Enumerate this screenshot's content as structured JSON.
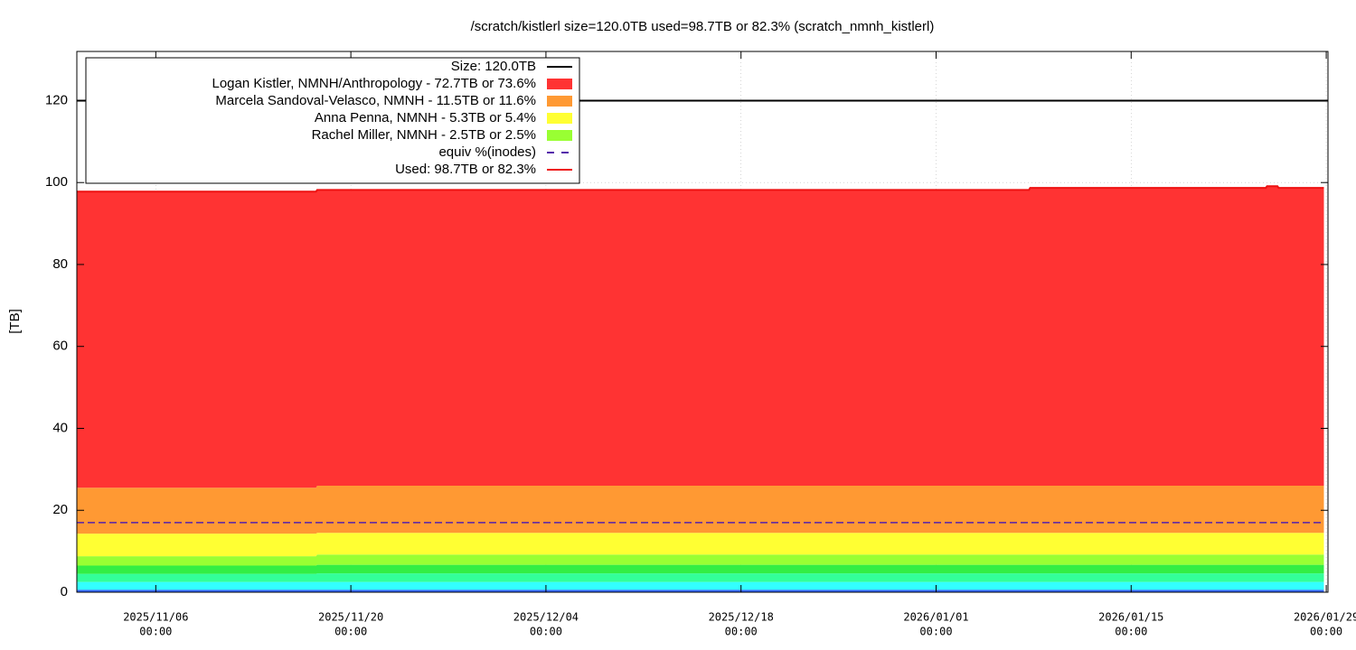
{
  "chart_data": {
    "type": "area",
    "stacked": true,
    "title": "/scratch/kistlerl size=120.0TB used=98.7TB or 82.3% (scratch_nmnh_kistlerl)",
    "ylabel": "[TB]",
    "x": [
      "2025/10/31 08:00",
      "2025/11/17 12:00",
      "2025/11/17 14:00",
      "2026/01/07 16:00",
      "2026/01/07 18:00",
      "2026/01/24 16:00",
      "2026/01/24 18:00",
      "2026/01/25 12:00",
      "2026/01/25 14:00",
      "2026/01/28 20:00"
    ],
    "xlim": [
      "2025/10/31 08:00",
      "2026/01/29 03:00"
    ],
    "xticks": [
      {
        "value": "2025/11/06 00:00",
        "label": [
          "2025/11/06",
          "00:00"
        ]
      },
      {
        "value": "2025/11/20 00:00",
        "label": [
          "2025/11/20",
          "00:00"
        ]
      },
      {
        "value": "2025/12/04 00:00",
        "label": [
          "2025/12/04",
          "00:00"
        ]
      },
      {
        "value": "2025/12/18 00:00",
        "label": [
          "2025/12/18",
          "00:00"
        ]
      },
      {
        "value": "2026/01/01 00:00",
        "label": [
          "2026/01/01",
          "00:00"
        ]
      },
      {
        "value": "2026/01/15 00:00",
        "label": [
          "2026/01/15",
          "00:00"
        ]
      },
      {
        "value": "2026/01/29 00:00",
        "label": [
          "2026/01/29",
          "00:00"
        ]
      }
    ],
    "ylim": [
      0,
      132
    ],
    "yticks": [
      0,
      20,
      40,
      60,
      80,
      100,
      120
    ],
    "grid": true,
    "legend": "top-left",
    "series": [
      {
        "name": "Size: 120.0TB",
        "type": "line",
        "color": "#000000",
        "values": [
          120,
          120,
          120,
          120,
          120,
          120,
          120,
          120,
          120,
          120
        ]
      },
      {
        "name": "Logan Kistler, NMNH/Anthropology - 72.7TB or 73.6%",
        "color": "#ff3333",
        "values": [
          72.3,
          72.3,
          72.2,
          72.2,
          72.7,
          72.7,
          73.1,
          73.1,
          72.7,
          72.7
        ]
      },
      {
        "name": "Marcela Sandoval-Velasco, NMNH - 11.5TB or 11.6%",
        "color": "#ff9933",
        "values": [
          11.2,
          11.2,
          11.5,
          11.5,
          11.5,
          11.5,
          11.5,
          11.5,
          11.5,
          11.5
        ]
      },
      {
        "name": "Anna Penna, NMNH - 5.3TB or 5.4%",
        "color": "#ffff33",
        "values": [
          5.5,
          5.5,
          5.3,
          5.3,
          5.3,
          5.3,
          5.3,
          5.3,
          5.3,
          5.3
        ]
      },
      {
        "name": "Rachel Miller, NMNH - 2.5TB or 2.5%",
        "color": "#99ff33",
        "values": [
          2.3,
          2.3,
          2.5,
          2.5,
          2.5,
          2.5,
          2.5,
          2.5,
          2.5,
          2.5
        ]
      },
      {
        "color": "#33ee44",
        "values": [
          2.0,
          2.0,
          2.1,
          2.1,
          2.1,
          2.1,
          2.1,
          2.1,
          2.1,
          2.1
        ]
      },
      {
        "color": "#33ff99",
        "values": [
          2.0,
          2.0,
          2.1,
          2.1,
          2.1,
          2.1,
          2.1,
          2.1,
          2.1,
          2.1
        ]
      },
      {
        "color": "#33ffff",
        "values": [
          1.9,
          1.9,
          1.9,
          1.9,
          1.9,
          1.9,
          1.9,
          1.9,
          1.9,
          1.9
        ]
      },
      {
        "color": "#3366ff",
        "values": [
          0.6,
          0.6,
          0.6,
          0.6,
          0.6,
          0.6,
          0.6,
          0.6,
          0.6,
          0.6
        ]
      },
      {
        "name": "equiv %(inodes)",
        "type": "line",
        "dashed": true,
        "color": "#5522aa",
        "values": [
          17.0,
          17.0,
          17.0,
          17.0,
          17.0,
          17.0,
          17.0,
          17.0,
          17.0,
          17.0
        ]
      },
      {
        "name": "Used: 98.7TB or 82.3%",
        "type": "line",
        "color": "#ee1111",
        "values": [
          97.8,
          97.8,
          98.2,
          98.2,
          98.7,
          98.7,
          99.1,
          99.1,
          98.7,
          98.7
        ]
      }
    ]
  }
}
